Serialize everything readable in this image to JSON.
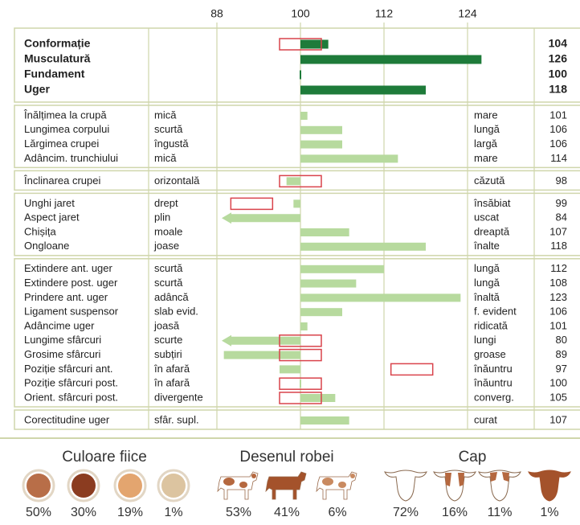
{
  "chart_data": {
    "type": "bar",
    "xlim": [
      88,
      127
    ],
    "xticks": [
      88,
      100,
      112,
      124
    ],
    "base": 100,
    "groups": [
      {
        "bold": true,
        "color": "#1e7b3a",
        "rows": [
          {
            "name": "Conformație",
            "value": 104,
            "range": [
              97,
              103
            ]
          },
          {
            "name": "Musculatură",
            "value": 126
          },
          {
            "name": "Fundament",
            "value": 100
          },
          {
            "name": "Uger",
            "value": 118
          }
        ]
      },
      {
        "bold": false,
        "color": "#b7da9e",
        "rows": [
          {
            "name": "Înălțimea la crupă",
            "low": "mică",
            "high": "mare",
            "value": 101
          },
          {
            "name": "Lungimea corpului",
            "low": "scurtă",
            "high": "lungă",
            "value": 106
          },
          {
            "name": "Lărgimea crupei",
            "low": "îngustă",
            "high": "largă",
            "value": 106
          },
          {
            "name": "Adâncim. trunchiului",
            "low": "mică",
            "high": "mare",
            "value": 114
          }
        ]
      },
      {
        "bold": false,
        "color": "#b7da9e",
        "rows": [
          {
            "name": "Înclinarea crupei",
            "low": "orizontală",
            "high": "căzută",
            "value": 98,
            "range": [
              97,
              103
            ]
          }
        ]
      },
      {
        "bold": false,
        "color": "#b7da9e",
        "rows": [
          {
            "name": "Unghi jaret",
            "low": "drept",
            "high": "însăbiat",
            "value": 99,
            "range": [
              90,
              96
            ]
          },
          {
            "name": "Aspect jaret",
            "low": "plin",
            "high": "uscat",
            "value": 84
          },
          {
            "name": "Chișița",
            "low": "moale",
            "high": "dreaptă",
            "value": 107
          },
          {
            "name": "Ongloane",
            "low": "joase",
            "high": "înalte",
            "value": 118
          }
        ]
      },
      {
        "bold": false,
        "color": "#b7da9e",
        "rows": [
          {
            "name": "Extindere ant. uger",
            "low": "scurtă",
            "high": "lungă",
            "value": 112
          },
          {
            "name": "Extindere post. uger",
            "low": "scurtă",
            "high": "lungă",
            "value": 108
          },
          {
            "name": "Prindere ant. uger",
            "low": "adâncă",
            "high": "înaltă",
            "value": 123
          },
          {
            "name": "Ligament suspensor",
            "low": "slab evid.",
            "high": "f. evident",
            "value": 106
          },
          {
            "name": "Adâncime uger",
            "low": "joasă",
            "high": "ridicată",
            "value": 101
          },
          {
            "name": "Lungime sfârcuri",
            "low": "scurte",
            "high": "lungi",
            "value": 80,
            "range": [
              97,
              103
            ]
          },
          {
            "name": "Grosime sfârcuri",
            "low": "subțiri",
            "high": "groase",
            "value": 89,
            "range": [
              97,
              103
            ]
          },
          {
            "name": "Poziție sfârcuri ant.",
            "low": "în afară",
            "high": "înăuntru",
            "value": 97,
            "range": [
              113,
              119
            ]
          },
          {
            "name": "Poziție sfârcuri post.",
            "low": "în afară",
            "high": "înăuntru",
            "value": 100,
            "range": [
              97,
              103
            ]
          },
          {
            "name": "Orient. sfârcuri post.",
            "low": "divergente",
            "high": "converg.",
            "value": 105,
            "range": [
              97,
              103
            ]
          }
        ]
      },
      {
        "bold": false,
        "color": "#b7da9e",
        "rows": [
          {
            "name": "Corectitudine uger",
            "low": "sfâr. supl.",
            "high": "curat",
            "value": 107
          }
        ]
      }
    ],
    "panels": [
      {
        "title": "Culoare fiice",
        "kind": "circle",
        "items": [
          {
            "label": "50%",
            "color": "#b86e48"
          },
          {
            "label": "30%",
            "color": "#8b3c20"
          },
          {
            "label": "19%",
            "color": "#e3a56f"
          },
          {
            "label": "1%",
            "color": "#dcc4a0"
          }
        ]
      },
      {
        "title": "Desenul robei",
        "kind": "cow",
        "items": [
          {
            "label": "53%",
            "color": "#b5683f"
          },
          {
            "label": "41%",
            "color": "#a4522b"
          },
          {
            "label": "6%",
            "color": "#c98a60"
          }
        ]
      },
      {
        "title": "Cap",
        "kind": "head",
        "items": [
          {
            "label": "72%",
            "color": "#ffffff"
          },
          {
            "label": "16%",
            "color": "#b5683f"
          },
          {
            "label": "11%",
            "color": "#b5683f"
          },
          {
            "label": "1%",
            "color": "#a4522b"
          }
        ]
      }
    ]
  }
}
